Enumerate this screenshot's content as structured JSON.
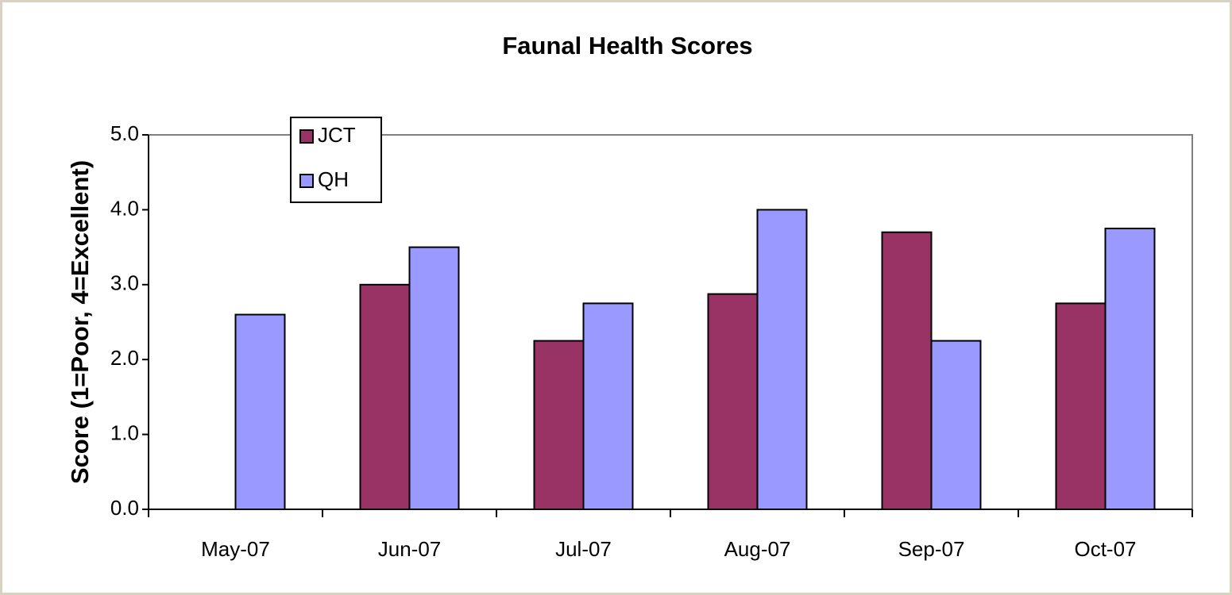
{
  "chart_data": {
    "type": "bar",
    "title": "Faunal Health Scores",
    "y_label": "Score (1=Poor, 4=Excellent)",
    "categories": [
      "May-07",
      "Jun-07",
      "Jul-07",
      "Aug-07",
      "Sep-07",
      "Oct-07"
    ],
    "series": [
      {
        "name": "JCT",
        "color": "#993366",
        "values": [
          null,
          3.0,
          2.25,
          2.875,
          3.7,
          2.75
        ]
      },
      {
        "name": "QH",
        "color": "#9999ff",
        "values": [
          2.6,
          3.5,
          2.75,
          4.0,
          2.25,
          3.75
        ]
      }
    ],
    "ylim": [
      0,
      5
    ],
    "yticks": [
      {
        "value": 0,
        "label": "0.0"
      },
      {
        "value": 1,
        "label": "1.0"
      },
      {
        "value": 2,
        "label": "2.0"
      },
      {
        "value": 3,
        "label": "3.0"
      },
      {
        "value": 4,
        "label": "4.0"
      },
      {
        "value": 5,
        "label": "5.0"
      }
    ],
    "grid": false,
    "legend": "upper-left"
  }
}
